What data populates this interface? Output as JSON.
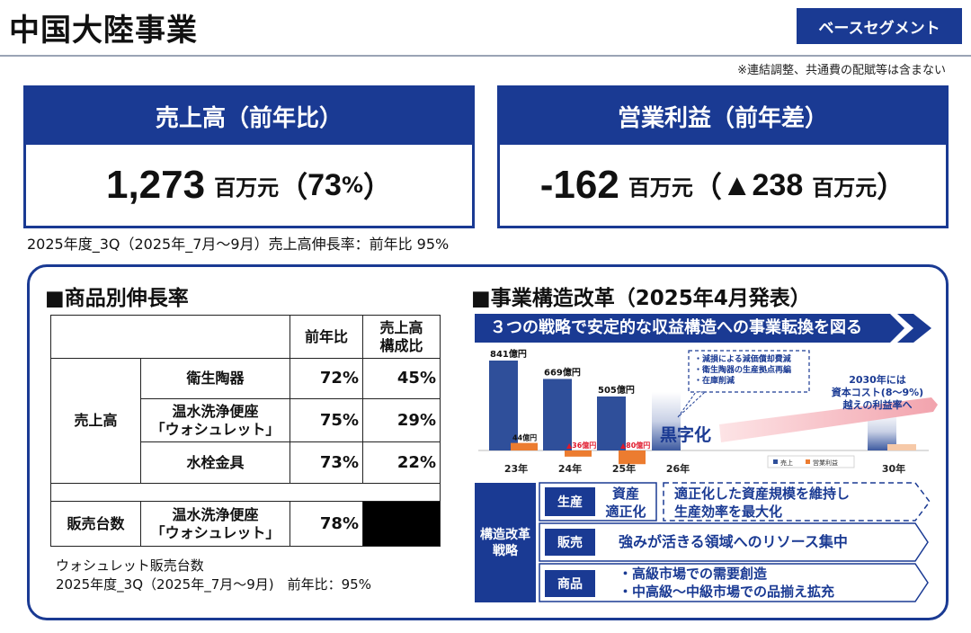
{
  "header": {
    "title": "中国大陸事業",
    "segment": "ベースセグメント",
    "note": "※連結調整、共通費の配賦等は含まない"
  },
  "sales": {
    "heading": "売上高（前年比）",
    "value": "1,273",
    "unit": "百万元",
    "open": "（",
    "pct_value": "73",
    "pct_sign": "%",
    "close": "）",
    "note": "2025年度_3Q（2025年_7月～9月）売上高伸長率：前年比 95%"
  },
  "profit": {
    "heading": "営業利益（前年差）",
    "value": "-162",
    "unit": "百万元",
    "open": "（",
    "diff": "▲238",
    "diff_unit": "百万元",
    "close": "）"
  },
  "growth": {
    "title": "■商品別伸長率",
    "col_yoy": "前年比",
    "col_comp_1": "売上高",
    "col_comp_2": "構成比",
    "group_sales": "売上高",
    "rows": [
      {
        "name_1": "衛生陶器",
        "name_2": "",
        "yoy": "72%",
        "comp": "45%"
      },
      {
        "name_1": "温水洗浄便座",
        "name_2": "「ウォシュレット」",
        "yoy": "75%",
        "comp": "29%"
      },
      {
        "name_1": "水栓金具",
        "name_2": "",
        "yoy": "73%",
        "comp": "22%"
      }
    ],
    "units_label": "販売台数",
    "units_name_1": "温水洗浄便座",
    "units_name_2": "「ウォシュレット」",
    "units_yoy": "78%",
    "note_1": "ウォシュレット販売台数",
    "note_2": "2025年度_3Q（2025年_7月～9月)　前年比：95%"
  },
  "reform": {
    "title": "■事業構造改革（2025年4月発表）",
    "banner": "３つの戦略で安定的な収益構造への事業転換を図る",
    "callout": [
      "・減損による減価償却費減",
      "・衛生陶器の生産拠点再編",
      "・在庫削減"
    ],
    "kuroji": "黒字化",
    "target": [
      "2030年には",
      "資本コスト(8～9%)",
      "越えの利益率へ"
    ],
    "strategy_label_1": "構造改革",
    "strategy_label_2": "戦略",
    "strategies": [
      {
        "tag": "生産",
        "sub_1": "資産",
        "sub_2": "適正化",
        "text_1": "適正化した資産規模を維持し",
        "text_2": "生産効率を最大化"
      },
      {
        "tag": "販売",
        "text_1": "強みが活きる領域へのリソース集中"
      },
      {
        "tag": "商品",
        "text_1": "・高級市場での需要創造",
        "text_2": "・中高級～中級市場での品揃え拡充"
      }
    ]
  },
  "chart_data": {
    "type": "bar",
    "categories": [
      "23年",
      "24年",
      "25年",
      "26年",
      "30年"
    ],
    "series": [
      {
        "name": "売上",
        "values": [
          841,
          669,
          505,
          null,
          null
        ],
        "labels": [
          "841億円",
          "669億円",
          "505億円",
          "",
          ""
        ]
      },
      {
        "name": "営業利益",
        "values": [
          44,
          -36,
          -80,
          null,
          null
        ],
        "labels": [
          "44億円",
          "▲36億円",
          "▲80億円",
          "",
          ""
        ]
      }
    ],
    "ylim": [
      -100,
      900
    ],
    "legend": "bottom-right",
    "colors": {
      "sales": "#2f4f9a",
      "profit": "#ec7c30",
      "loss_label": "#e0182b"
    }
  }
}
